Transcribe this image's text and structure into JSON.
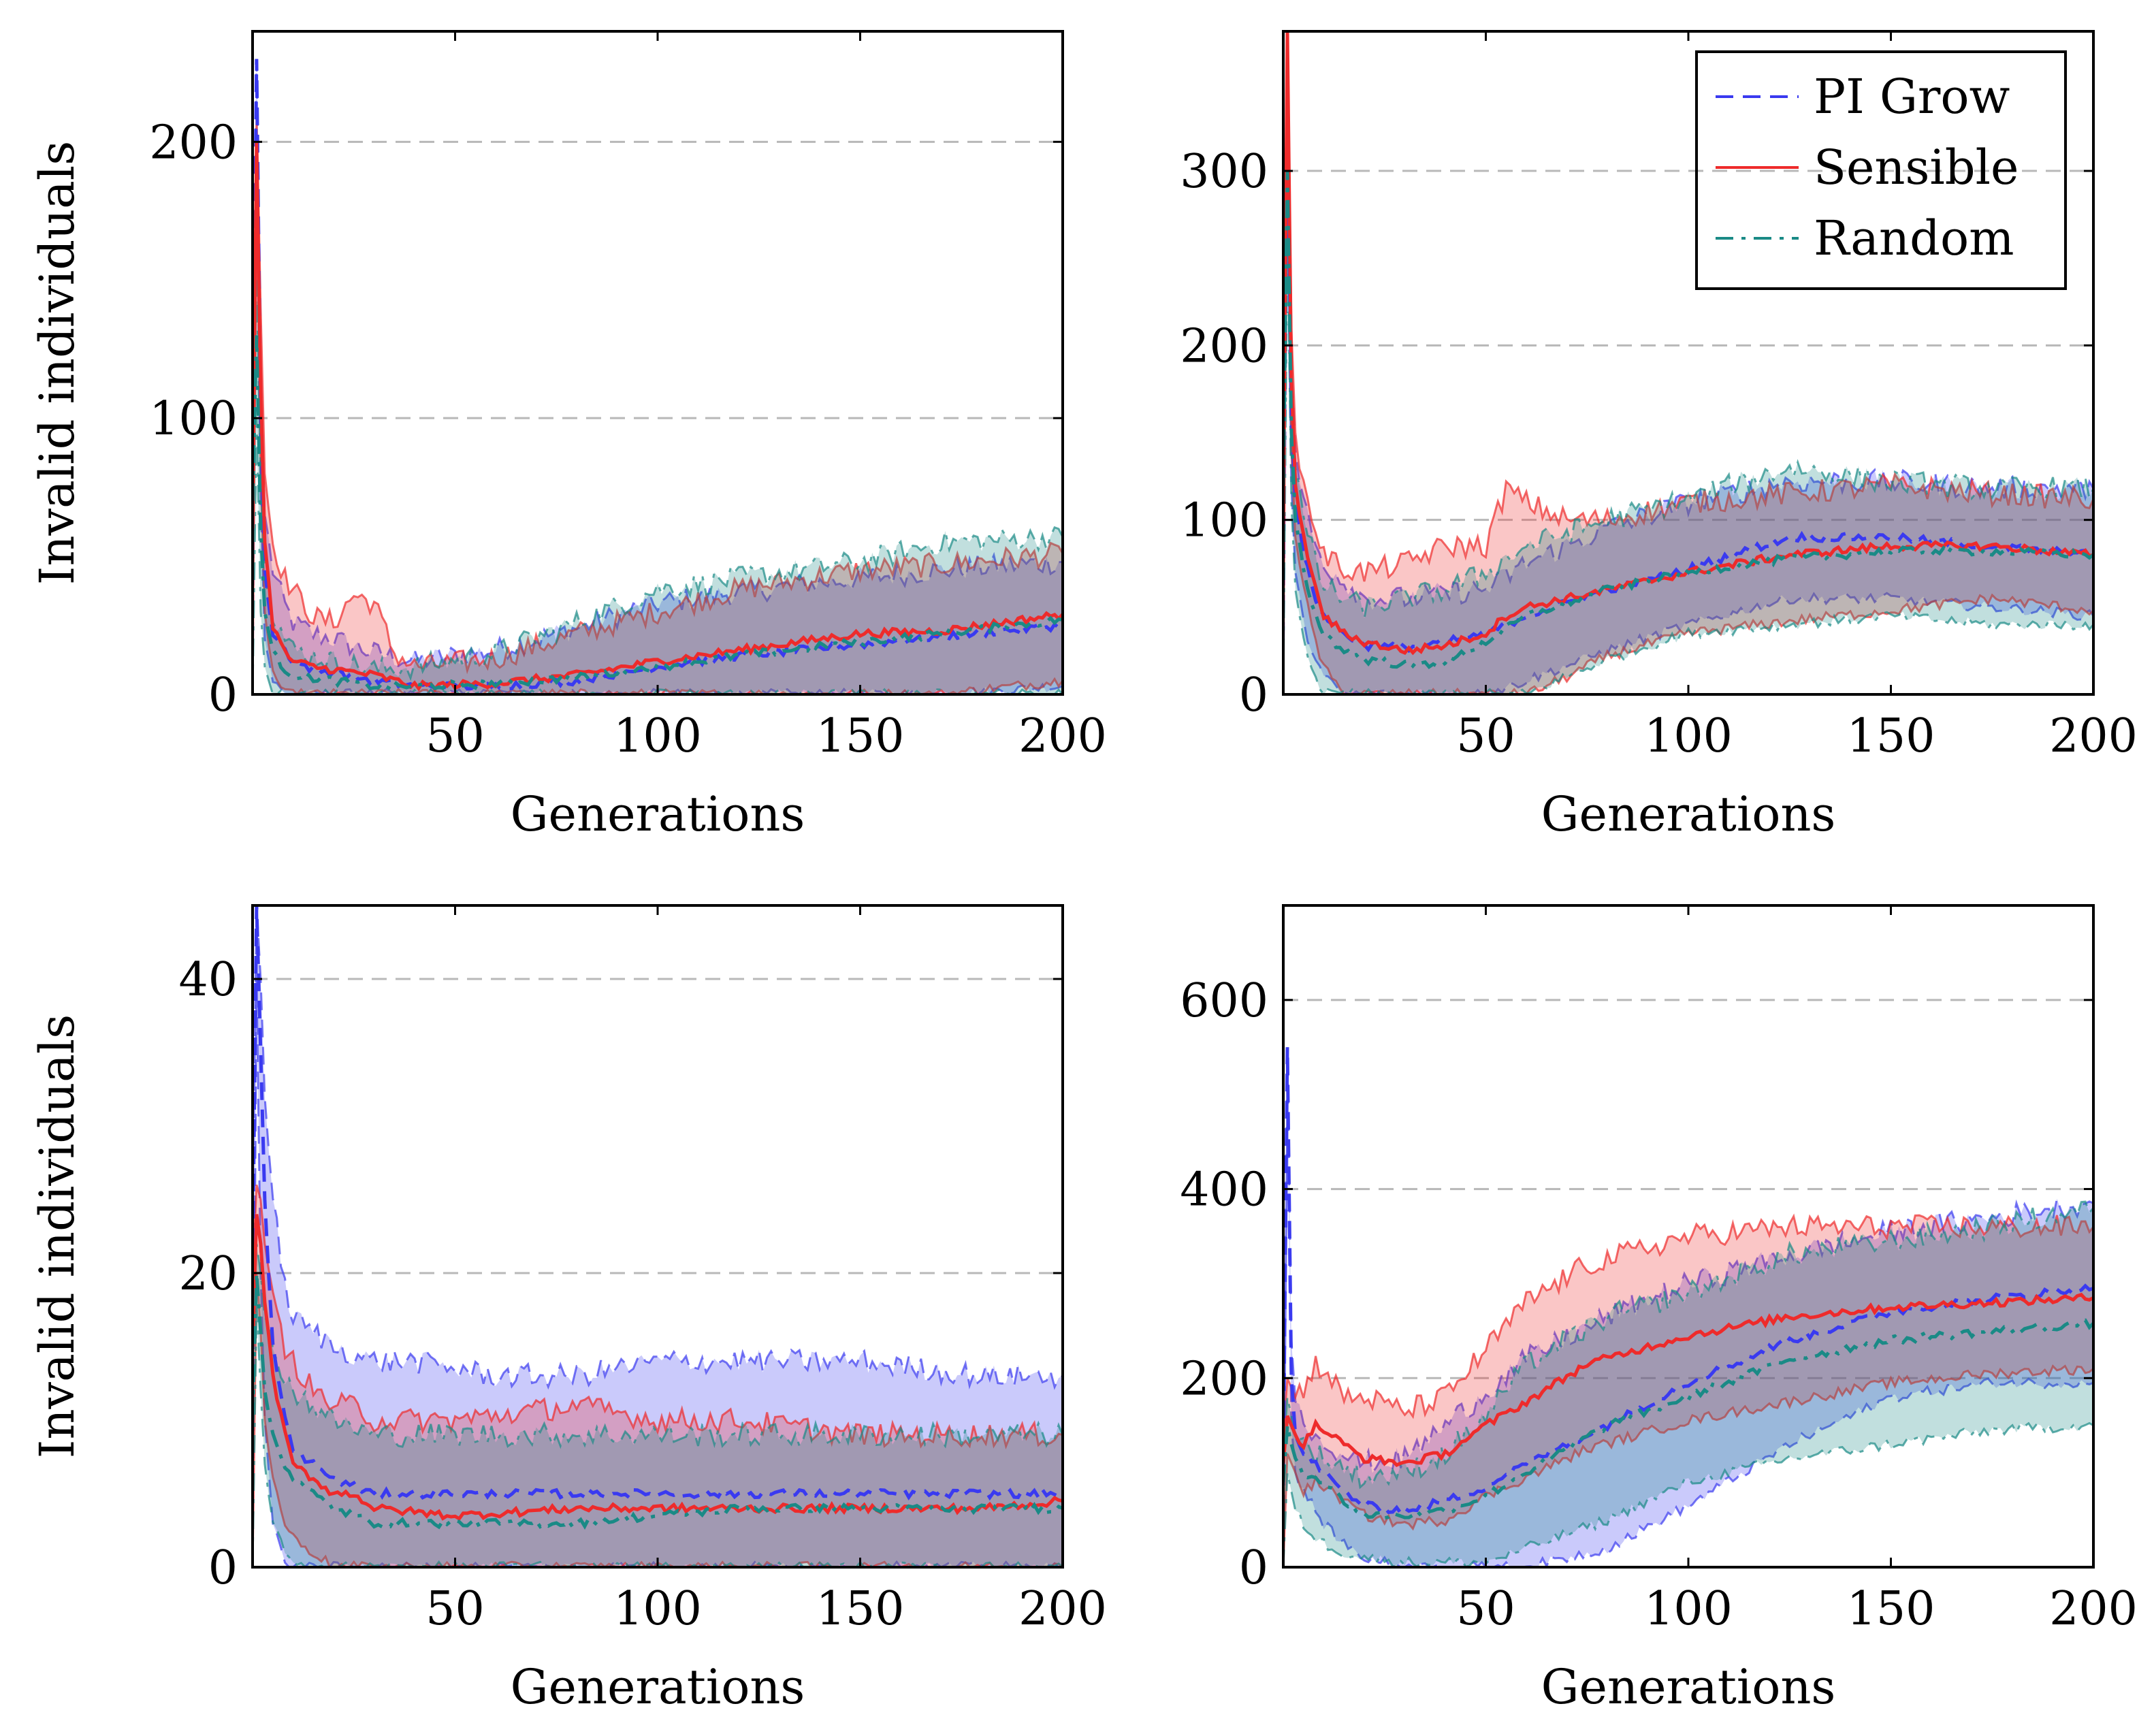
{
  "colors": {
    "pi_grow": "#3a3af0",
    "sensible": "#ee2b2b",
    "random": "#1a8a86"
  },
  "legend": {
    "entries": [
      "PI Grow",
      "Sensible",
      "Random"
    ]
  },
  "chart_data": [
    {
      "type": "line",
      "panel": "top-left",
      "xlabel": "Generations",
      "ylabel": "Invalid individuals",
      "xlim": [
        0,
        200
      ],
      "ylim": [
        0,
        240
      ],
      "xticks": [
        50,
        100,
        150,
        200
      ],
      "yticks": [
        0,
        100,
        200
      ],
      "grid": "horizontal-dashed",
      "series": [
        {
          "name": "PI Grow",
          "key": "pi_grow",
          "style": "dashed",
          "x": [
            0,
            1,
            2,
            3,
            5,
            8,
            10,
            15,
            20,
            30,
            40,
            60,
            80,
            100,
            120,
            150,
            170,
            200
          ],
          "mean": [
            80,
            230,
            100,
            45,
            22,
            16,
            12,
            9,
            8,
            5,
            3,
            3,
            5,
            10,
            14,
            18,
            21,
            25
          ],
          "upper": [
            100,
            230,
            120,
            65,
            45,
            32,
            26,
            22,
            20,
            15,
            12,
            16,
            24,
            33,
            37,
            42,
            45,
            48
          ],
          "lower": [
            0,
            205,
            70,
            20,
            5,
            0,
            0,
            0,
            0,
            0,
            0,
            0,
            0,
            0,
            0,
            0,
            0,
            3
          ]
        },
        {
          "name": "Sensible",
          "key": "sensible",
          "style": "solid",
          "x": [
            0,
            1,
            2,
            3,
            5,
            8,
            10,
            15,
            20,
            25,
            30,
            35,
            40,
            60,
            80,
            100,
            120,
            150,
            170,
            200
          ],
          "mean": [
            60,
            200,
            110,
            55,
            25,
            15,
            12,
            10,
            9,
            8,
            7,
            5,
            3,
            4,
            7,
            12,
            16,
            22,
            23,
            29
          ],
          "upper": [
            80,
            210,
            140,
            80,
            55,
            42,
            38,
            28,
            26,
            36,
            33,
            15,
            10,
            13,
            22,
            30,
            38,
            45,
            47,
            51
          ],
          "lower": [
            0,
            180,
            80,
            30,
            8,
            0,
            0,
            0,
            0,
            0,
            0,
            0,
            0,
            0,
            0,
            0,
            0,
            0,
            0,
            5
          ]
        },
        {
          "name": "Random",
          "key": "random",
          "style": "dashdot",
          "x": [
            0,
            1,
            2,
            3,
            5,
            8,
            10,
            15,
            20,
            30,
            40,
            60,
            80,
            100,
            120,
            150,
            170,
            200
          ],
          "mean": [
            70,
            130,
            60,
            30,
            15,
            9,
            7,
            6,
            5,
            3,
            3,
            4,
            6,
            10,
            14,
            19,
            22,
            27
          ],
          "upper": [
            90,
            150,
            80,
            45,
            30,
            20,
            16,
            14,
            12,
            9,
            10,
            15,
            26,
            38,
            42,
            48,
            55,
            57
          ],
          "lower": [
            0,
            100,
            30,
            10,
            0,
            0,
            0,
            0,
            0,
            0,
            0,
            0,
            0,
            0,
            0,
            0,
            0,
            0
          ]
        }
      ]
    },
    {
      "type": "line",
      "panel": "top-right",
      "xlabel": "Generations",
      "ylabel": "",
      "xlim": [
        0,
        200
      ],
      "ylim": [
        0,
        380
      ],
      "xticks": [
        50,
        100,
        150,
        200
      ],
      "yticks": [
        0,
        100,
        200,
        300
      ],
      "grid": "horizontal-dashed",
      "series": [
        {
          "name": "PI Grow",
          "key": "pi_grow",
          "style": "dashed",
          "x": [
            0,
            1,
            2,
            3,
            5,
            8,
            10,
            15,
            20,
            30,
            40,
            50,
            60,
            80,
            100,
            125,
            150,
            175,
            200
          ],
          "mean": [
            120,
            340,
            160,
            110,
            80,
            55,
            45,
            35,
            28,
            27,
            30,
            35,
            45,
            60,
            72,
            90,
            90,
            85,
            80
          ],
          "upper": [
            150,
            360,
            190,
            140,
            110,
            85,
            75,
            65,
            55,
            55,
            58,
            60,
            75,
            95,
            110,
            122,
            122,
            118,
            118
          ],
          "lower": [
            0,
            300,
            120,
            70,
            40,
            20,
            10,
            0,
            0,
            0,
            0,
            0,
            8,
            25,
            40,
            55,
            55,
            50,
            45
          ]
        },
        {
          "name": "Sensible",
          "key": "sensible",
          "style": "solid",
          "x": [
            0,
            1,
            2,
            3,
            5,
            8,
            10,
            15,
            20,
            30,
            40,
            50,
            55,
            60,
            70,
            80,
            100,
            125,
            150,
            175,
            200
          ],
          "mean": [
            100,
            380,
            180,
            120,
            90,
            60,
            45,
            35,
            30,
            25,
            28,
            35,
            45,
            50,
            55,
            60,
            70,
            80,
            85,
            85,
            80
          ],
          "upper": [
            130,
            380,
            210,
            150,
            120,
            95,
            80,
            72,
            70,
            75,
            85,
            85,
            118,
            110,
            100,
            100,
            110,
            115,
            120,
            115,
            112
          ],
          "lower": [
            0,
            350,
            140,
            90,
            60,
            30,
            15,
            0,
            0,
            0,
            0,
            0,
            0,
            0,
            10,
            22,
            35,
            42,
            48,
            55,
            48
          ]
        },
        {
          "name": "Random",
          "key": "random",
          "style": "dashdot",
          "x": [
            0,
            1,
            2,
            3,
            5,
            8,
            10,
            15,
            20,
            30,
            40,
            50,
            60,
            80,
            100,
            125,
            150,
            175,
            200
          ],
          "mean": [
            120,
            300,
            150,
            100,
            70,
            45,
            35,
            25,
            20,
            17,
            18,
            30,
            45,
            60,
            70,
            78,
            82,
            82,
            80
          ],
          "upper": [
            150,
            330,
            180,
            130,
            100,
            75,
            62,
            55,
            50,
            55,
            60,
            70,
            85,
            100,
            112,
            130,
            122,
            118,
            118
          ],
          "lower": [
            0,
            270,
            110,
            60,
            30,
            10,
            0,
            0,
            0,
            0,
            0,
            0,
            0,
            20,
            35,
            40,
            45,
            40,
            40
          ]
        }
      ]
    },
    {
      "type": "line",
      "panel": "bottom-left",
      "xlabel": "Generations",
      "ylabel": "Invalid individuals",
      "xlim": [
        0,
        200
      ],
      "ylim": [
        0,
        45
      ],
      "xticks": [
        50,
        100,
        150,
        200
      ],
      "yticks": [
        0,
        20,
        40
      ],
      "grid": "horizontal-dashed",
      "series": [
        {
          "name": "PI Grow",
          "key": "pi_grow",
          "style": "dashed",
          "x": [
            0,
            1,
            2,
            3,
            5,
            8,
            10,
            15,
            20,
            30,
            40,
            60,
            80,
            100,
            120,
            150,
            180,
            200
          ],
          "mean": [
            20,
            45,
            35,
            25,
            15,
            10,
            8,
            7,
            6,
            5,
            5,
            5,
            5,
            5,
            5,
            5,
            5,
            5
          ],
          "upper": [
            25,
            45,
            40,
            32,
            25,
            19,
            17,
            16,
            15,
            14,
            14,
            13,
            13,
            14,
            14,
            14,
            13,
            13
          ],
          "lower": [
            0,
            40,
            20,
            10,
            3,
            0,
            0,
            0,
            0,
            0,
            0,
            0,
            0,
            0,
            0,
            0,
            0,
            0
          ]
        },
        {
          "name": "Sensible",
          "key": "sensible",
          "style": "solid",
          "x": [
            0,
            1,
            2,
            3,
            5,
            8,
            10,
            15,
            20,
            25,
            30,
            50,
            80,
            100,
            120,
            150,
            180,
            200
          ],
          "mean": [
            15,
            24,
            22,
            18,
            13,
            9,
            7,
            6,
            5,
            5,
            4,
            3.5,
            4,
            4,
            4,
            4,
            4,
            4.5
          ],
          "upper": [
            20,
            26,
            25,
            22,
            18,
            15,
            14,
            12,
            11,
            11,
            10,
            10,
            11,
            10,
            10,
            9,
            9,
            9
          ],
          "lower": [
            0,
            20,
            16,
            10,
            6,
            3,
            2,
            1,
            0,
            0,
            0,
            0,
            0,
            0,
            0,
            0,
            0,
            0
          ]
        },
        {
          "name": "Random",
          "key": "random",
          "style": "dashdot",
          "x": [
            0,
            1,
            2,
            3,
            5,
            8,
            10,
            15,
            20,
            30,
            40,
            60,
            80,
            100,
            120,
            150,
            180,
            200
          ],
          "mean": [
            10,
            20,
            16,
            12,
            9,
            7,
            6,
            5,
            4,
            3,
            3,
            3,
            3,
            3.5,
            4,
            4,
            4,
            4
          ],
          "upper": [
            15,
            22,
            20,
            17,
            15,
            13,
            12,
            11,
            10,
            9,
            9,
            9,
            9,
            9,
            9,
            9,
            9,
            9
          ],
          "lower": [
            0,
            18,
            12,
            7,
            3,
            1,
            0,
            0,
            0,
            0,
            0,
            0,
            0,
            0,
            0,
            0,
            0,
            0
          ]
        }
      ]
    },
    {
      "type": "line",
      "panel": "bottom-right",
      "xlabel": "Generations",
      "ylabel": "",
      "xlim": [
        0,
        200
      ],
      "ylim": [
        0,
        700
      ],
      "xticks": [
        50,
        100,
        150,
        200
      ],
      "yticks": [
        0,
        200,
        400,
        600
      ],
      "grid": "horizontal-dashed",
      "series": [
        {
          "name": "PI Grow",
          "key": "pi_grow",
          "style": "dashed",
          "x": [
            0,
            1,
            2,
            3,
            5,
            8,
            10,
            15,
            20,
            30,
            40,
            50,
            60,
            80,
            100,
            125,
            150,
            175,
            200
          ],
          "mean": [
            100,
            550,
            200,
            140,
            120,
            110,
            100,
            80,
            65,
            60,
            70,
            85,
            110,
            150,
            195,
            240,
            270,
            285,
            295
          ],
          "upper": [
            130,
            550,
            240,
            175,
            155,
            140,
            135,
            120,
            110,
            115,
            150,
            185,
            220,
            265,
            300,
            330,
            355,
            370,
            385
          ],
          "lower": [
            0,
            500,
            150,
            100,
            80,
            60,
            45,
            25,
            10,
            0,
            0,
            0,
            0,
            20,
            65,
            130,
            180,
            195,
            195
          ]
        },
        {
          "name": "Sensible",
          "key": "sensible",
          "style": "solid",
          "x": [
            0,
            1,
            2,
            3,
            5,
            8,
            10,
            15,
            20,
            30,
            40,
            50,
            60,
            75,
            100,
            125,
            150,
            175,
            200
          ],
          "mean": [
            110,
            160,
            150,
            140,
            130,
            150,
            145,
            130,
            115,
            110,
            120,
            150,
            175,
            215,
            245,
            265,
            275,
            280,
            285
          ],
          "upper": [
            140,
            200,
            190,
            180,
            190,
            215,
            210,
            180,
            180,
            165,
            180,
            230,
            280,
            320,
            350,
            360,
            360,
            360,
            360
          ],
          "lower": [
            0,
            120,
            110,
            100,
            80,
            90,
            85,
            70,
            55,
            45,
            50,
            75,
            95,
            125,
            155,
            175,
            195,
            205,
            210
          ]
        },
        {
          "name": "Random",
          "key": "random",
          "style": "dashdot",
          "x": [
            0,
            1,
            2,
            3,
            5,
            8,
            10,
            15,
            20,
            30,
            40,
            50,
            60,
            80,
            100,
            125,
            150,
            175,
            200
          ],
          "mean": [
            90,
            150,
            130,
            115,
            100,
            95,
            90,
            70,
            55,
            55,
            60,
            75,
            100,
            150,
            180,
            220,
            240,
            250,
            258
          ],
          "upper": [
            120,
            180,
            160,
            140,
            130,
            120,
            115,
            105,
            95,
            100,
            120,
            160,
            215,
            265,
            290,
            330,
            345,
            360,
            380
          ],
          "lower": [
            0,
            100,
            80,
            60,
            45,
            30,
            25,
            15,
            10,
            5,
            5,
            5,
            20,
            50,
            90,
            115,
            130,
            145,
            150
          ]
        }
      ]
    }
  ]
}
